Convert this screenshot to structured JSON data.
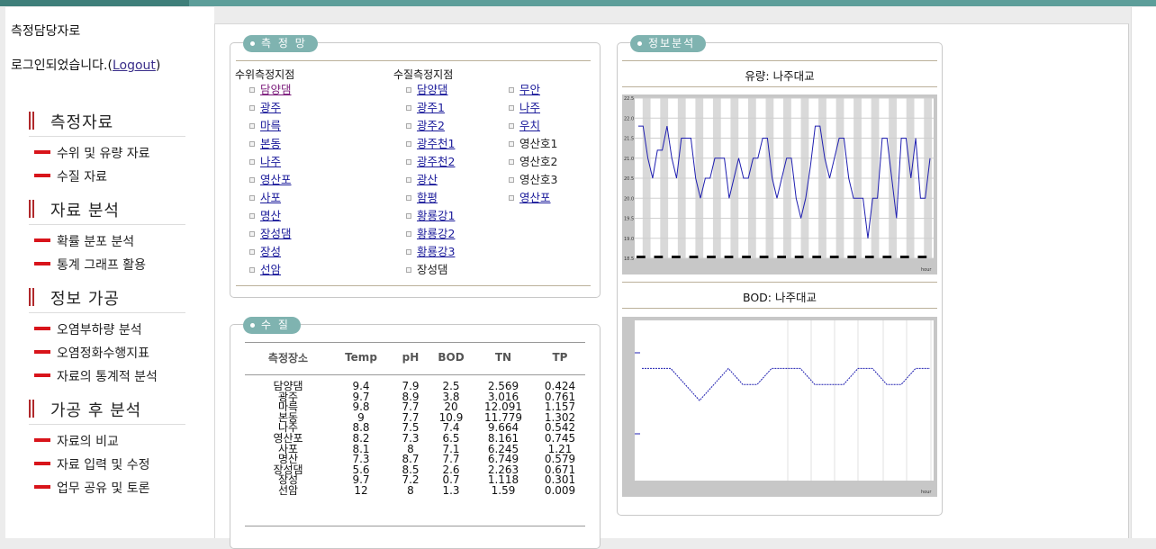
{
  "login": {
    "line1": "측정담당자로",
    "line2_prefix": "로그인되었습니다.(",
    "logout": "Logout",
    "line2_suffix": ")"
  },
  "menu": [
    {
      "title": "측정자료",
      "items": [
        "수위 및 유량 자료",
        "수질 자료"
      ]
    },
    {
      "title": "자료 분석",
      "items": [
        "확률 분포 분석",
        "통계 그래프 활용"
      ]
    },
    {
      "title": "정보 가공",
      "items": [
        "오염부하량 분석",
        "오염정화수행지표",
        "자료의 통계적 분석"
      ]
    },
    {
      "title": "가공 후 분석",
      "items": [
        "자료의 비교",
        "자료 입력 및 수정",
        "업무 공유 및 토론"
      ]
    }
  ],
  "network": {
    "title": "측 정 망",
    "level_header": "수위측정지점",
    "quality_header": "수질측정지점",
    "level_stations": [
      "담양댐",
      "광주",
      "마륵",
      "본동",
      "나주",
      "영산포",
      "사포",
      "명산",
      "장성댐",
      "장성",
      "선암"
    ],
    "quality_col1": [
      "담양댐",
      "광주1",
      "광주2",
      "광주천1",
      "광주천2",
      "광산",
      "함평",
      "황룡강1",
      "황룡강2",
      "황룡강3",
      "장성댐"
    ],
    "quality_col2": [
      "무안",
      "나주",
      "우치",
      "영산호1",
      "영산호2",
      "영산호3",
      "영산포"
    ]
  },
  "quality": {
    "title": "수 질",
    "headers": [
      "측정장소",
      "Temp",
      "pH",
      "BOD",
      "TN",
      "TP"
    ],
    "rows": [
      [
        "담양댐",
        "9.4",
        "7.9",
        "2.5",
        "2.569",
        "0.424"
      ],
      [
        "광주",
        "9.7",
        "8.9",
        "3.8",
        "3.016",
        "0.761"
      ],
      [
        "마륵",
        "9.8",
        "7.7",
        "20",
        "12.091",
        "1.157"
      ],
      [
        "본동",
        "9",
        "7.7",
        "10.9",
        "11.779",
        "1.302"
      ],
      [
        "나주",
        "8.8",
        "7.5",
        "7.4",
        "9.664",
        "0.542"
      ],
      [
        "영산포",
        "8.2",
        "7.3",
        "6.5",
        "8.161",
        "0.745"
      ],
      [
        "사포",
        "8.1",
        "8",
        "7.1",
        "6.245",
        "1.21"
      ],
      [
        "명산",
        "7.3",
        "8.7",
        "7.7",
        "6.749",
        "0.579"
      ],
      [
        "장성댐",
        "5.6",
        "8.5",
        "2.6",
        "2.263",
        "0.671"
      ],
      [
        "장성",
        "9.7",
        "7.2",
        "0.7",
        "1.118",
        "0.301"
      ],
      [
        "선암",
        "12",
        "8",
        "1.3",
        "1.59",
        "0.009"
      ]
    ]
  },
  "info": {
    "title": "정보분석",
    "flow_title": "유량: 나주대교",
    "bod_title": "BOD: 나주대교",
    "x_unit": "hour",
    "flow_series_color": "#1f1fb0",
    "bod_series_color": "#1f1fb0"
  },
  "chart_data": [
    {
      "type": "line",
      "title": "유량: 나주대교",
      "y_ticks": [
        "22.5",
        "22.0",
        "21.5",
        "21.0",
        "20.5",
        "20.0",
        "19.5",
        "19.0",
        "18.5"
      ],
      "ylim": [
        18.5,
        22.5
      ],
      "y": [
        21.8,
        21.8,
        21.0,
        20.5,
        21.2,
        21.2,
        21.8,
        21.0,
        20.5,
        21.5,
        21.5,
        21.5,
        20.5,
        20.0,
        20.5,
        20.5,
        21.0,
        21.0,
        21.0,
        20.0,
        20.5,
        21.0,
        20.5,
        20.5,
        21.0,
        21.0,
        21.5,
        21.5,
        20.5,
        20.0,
        20.5,
        21.0,
        21.0,
        20.0,
        19.5,
        20.0,
        20.8,
        21.8,
        21.8,
        21.0,
        20.5,
        21.0,
        21.5,
        21.5,
        20.5,
        20.0,
        20.0,
        20.0,
        19.0,
        20.0,
        20.0,
        21.5,
        21.5,
        20.5,
        19.5,
        21.5,
        21.5,
        20.5,
        21.5,
        20.0,
        20.0,
        21.0
      ]
    },
    {
      "type": "line",
      "title": "BOD: 나주대교",
      "y": [
        6.3,
        6.3,
        6.3,
        6.2,
        6.1,
        6.2,
        6.3,
        6.2,
        6.2,
        6.3,
        6.3,
        6.3,
        6.2,
        6.2,
        6.2,
        6.3,
        6.3,
        6.2,
        6.2,
        6.3,
        6.3
      ]
    }
  ]
}
